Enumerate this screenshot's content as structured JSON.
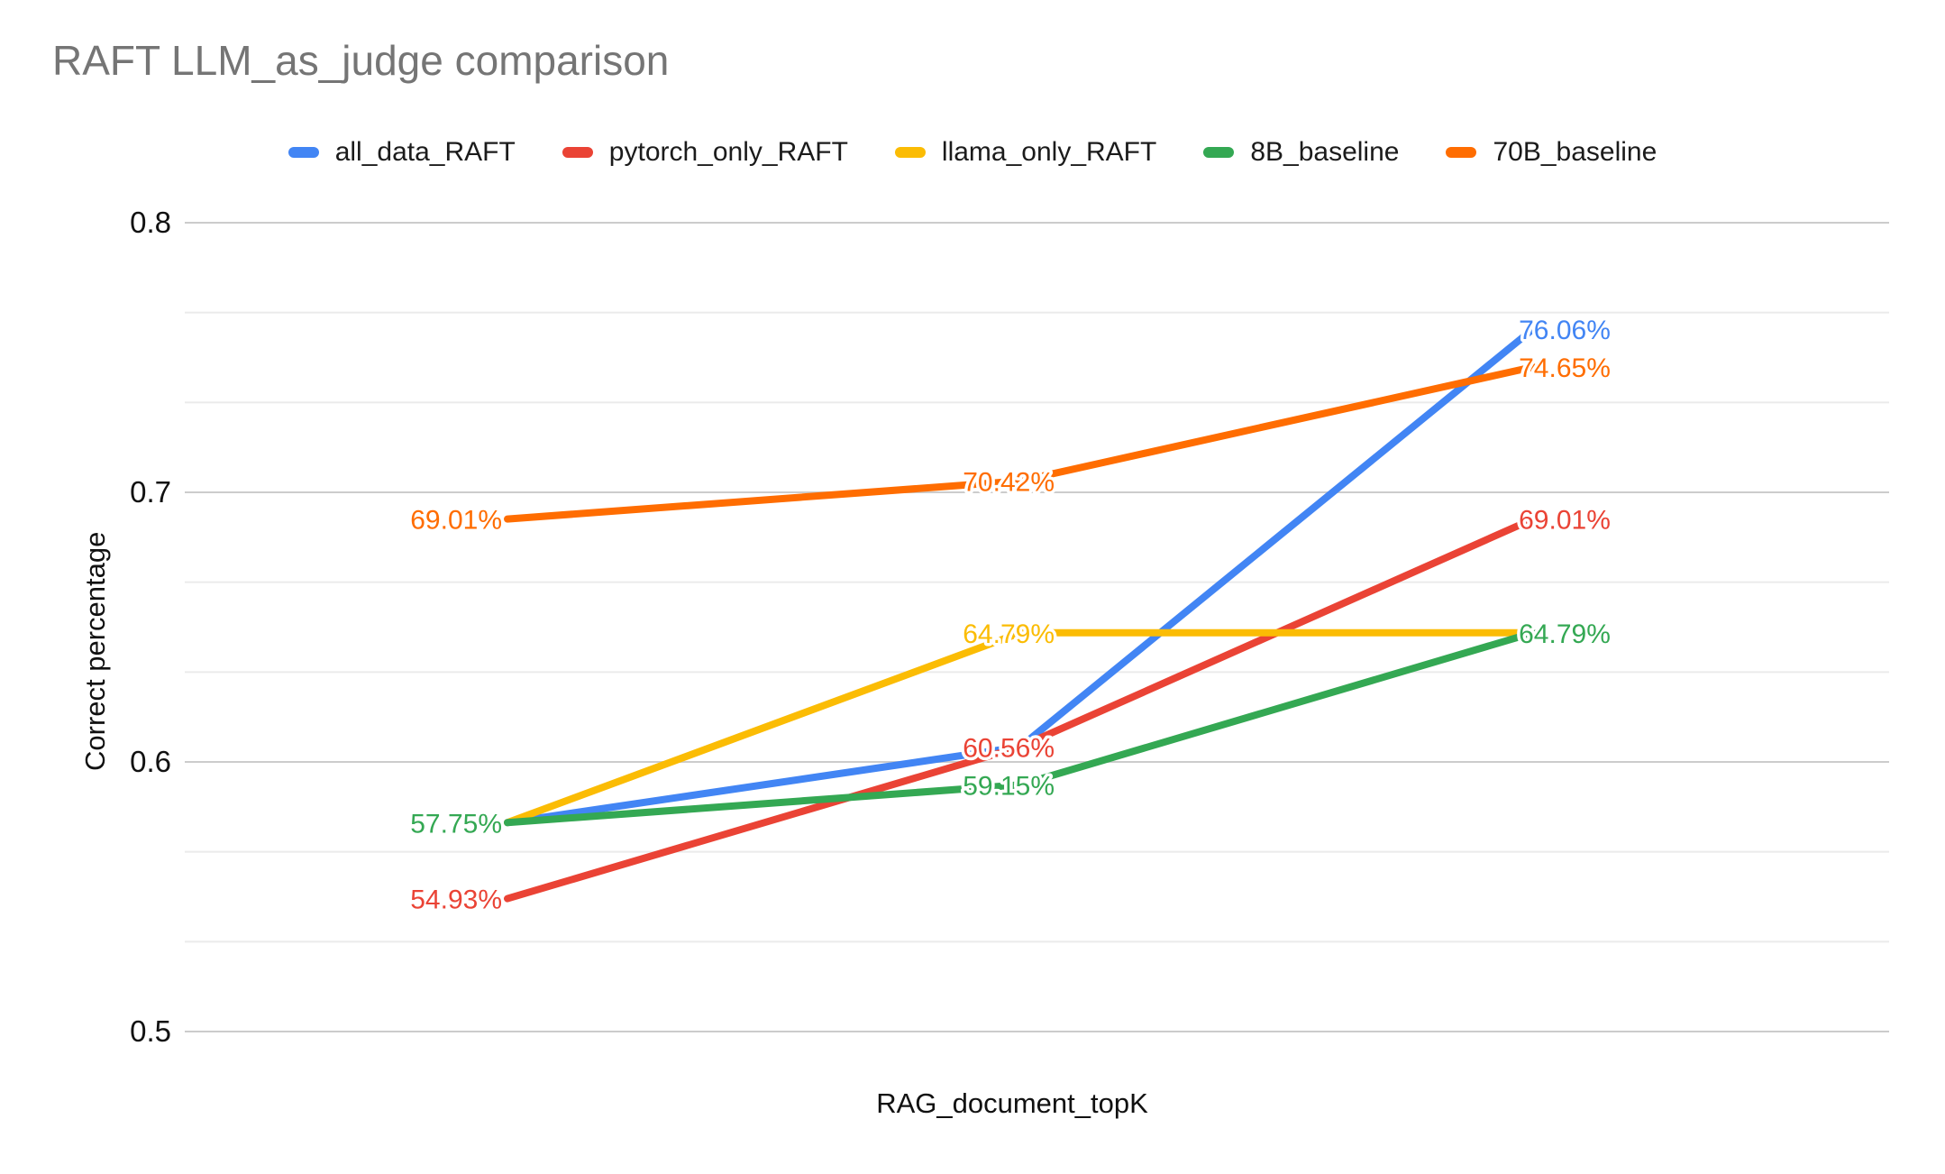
{
  "chart_data": {
    "type": "line",
    "title": "RAFT LLM_as_judge comparison",
    "xlabel": "RAG_document_topK",
    "ylabel": "Correct percentage",
    "categories": [
      "",
      "",
      ""
    ],
    "ylim": [
      0.5,
      0.8
    ],
    "yticks": [
      "0.8",
      "0.7",
      "0.6",
      "0.5"
    ],
    "ytick_values": [
      0.8,
      0.7,
      0.6,
      0.5
    ],
    "minor_gridline_step": 0.03333,
    "grid": true,
    "legend_position": "top",
    "x_tick_labels_visible": false,
    "title_color": "#757575",
    "series": [
      {
        "name": "all_data_RAFT",
        "color": "#4285F4",
        "values": [
          0.5775,
          0.6056,
          0.7606
        ],
        "point_labels": [
          "",
          "",
          "76.06%"
        ]
      },
      {
        "name": "pytorch_only_RAFT",
        "color": "#EA4335",
        "values": [
          0.5493,
          0.6056,
          0.6901
        ],
        "point_labels": [
          "54.93%",
          "60.56%",
          "69.01%"
        ]
      },
      {
        "name": "llama_only_RAFT",
        "color": "#FBBC04",
        "values": [
          0.5775,
          0.6479,
          0.6479
        ],
        "point_labels": [
          "",
          "64.79%",
          ""
        ]
      },
      {
        "name": "8B_baseline",
        "color": "#34A853",
        "values": [
          0.5775,
          0.5915,
          0.6479
        ],
        "point_labels": [
          "57.75%",
          "59.15%",
          "64.79%"
        ]
      },
      {
        "name": "70B_baseline",
        "color": "#FF6D01",
        "values": [
          0.6901,
          0.7042,
          0.7465
        ],
        "point_labels": [
          "69.01%",
          "70.42%",
          "74.65%"
        ]
      }
    ]
  }
}
